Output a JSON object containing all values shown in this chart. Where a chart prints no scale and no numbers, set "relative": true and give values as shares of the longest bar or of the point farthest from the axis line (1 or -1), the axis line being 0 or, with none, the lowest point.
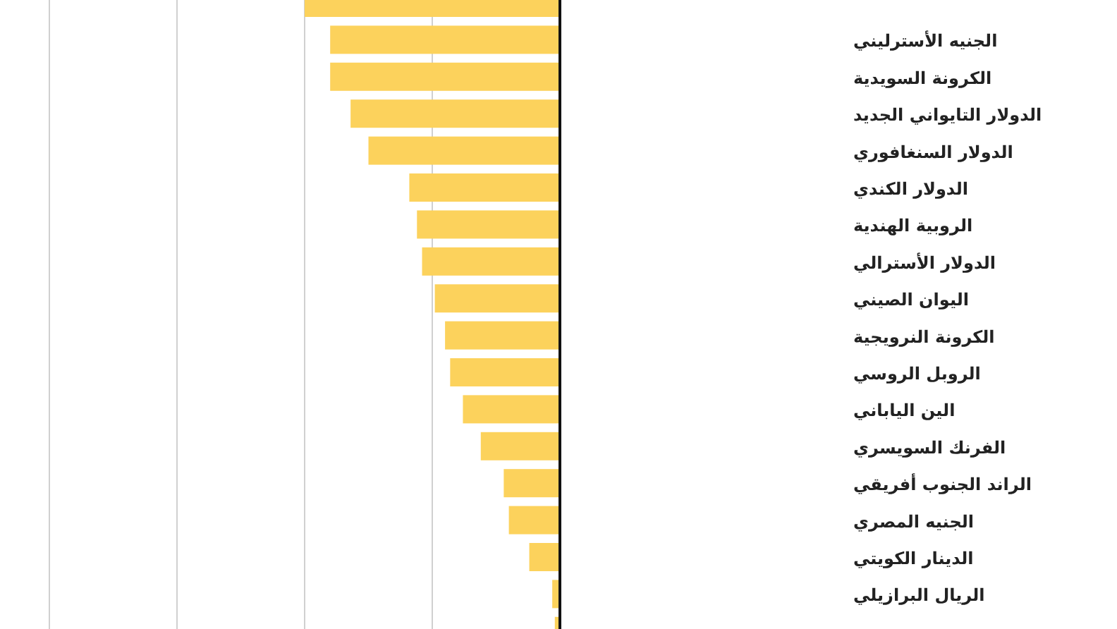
{
  "chart_data": {
    "type": "bar",
    "orientation": "horizontal",
    "relative": true,
    "color": "#fcd25c",
    "ref_lines": [
      {
        "axis": "x",
        "value": -2,
        "color": "#d0d0d0"
      },
      {
        "axis": "x",
        "value": -1.5,
        "color": "#d0d0d0"
      },
      {
        "axis": "x",
        "value": -1,
        "color": "#d0d0d0"
      },
      {
        "axis": "x",
        "value": -0.5,
        "color": "#d0d0d0"
      }
    ],
    "categories": [
      null,
      "الجنيه الأسترليني",
      "الكرونة السويدية",
      "الدولار التايواني الجديد",
      "الدولار السنغافوري",
      "الدولار الكندي",
      "الروبية الهندية",
      "الدولار الأسترالي",
      "اليوان الصيني",
      "الكرونة النرويجية",
      "الروبل الروسي",
      "الين الياباني",
      "الفرنك السويسري",
      "الراند الجنوب أفريقي",
      "الجنيه المصري",
      "الدينار الكويتي",
      "الريال البرازيلي",
      null
    ],
    "values": [
      -1,
      -0.9,
      -0.9,
      -0.82,
      -0.75,
      -0.59,
      -0.56,
      -0.54,
      -0.49,
      -0.45,
      -0.43,
      -0.38,
      -0.31,
      -0.22,
      -0.2,
      -0.12,
      -0.03,
      -0.02
    ]
  }
}
